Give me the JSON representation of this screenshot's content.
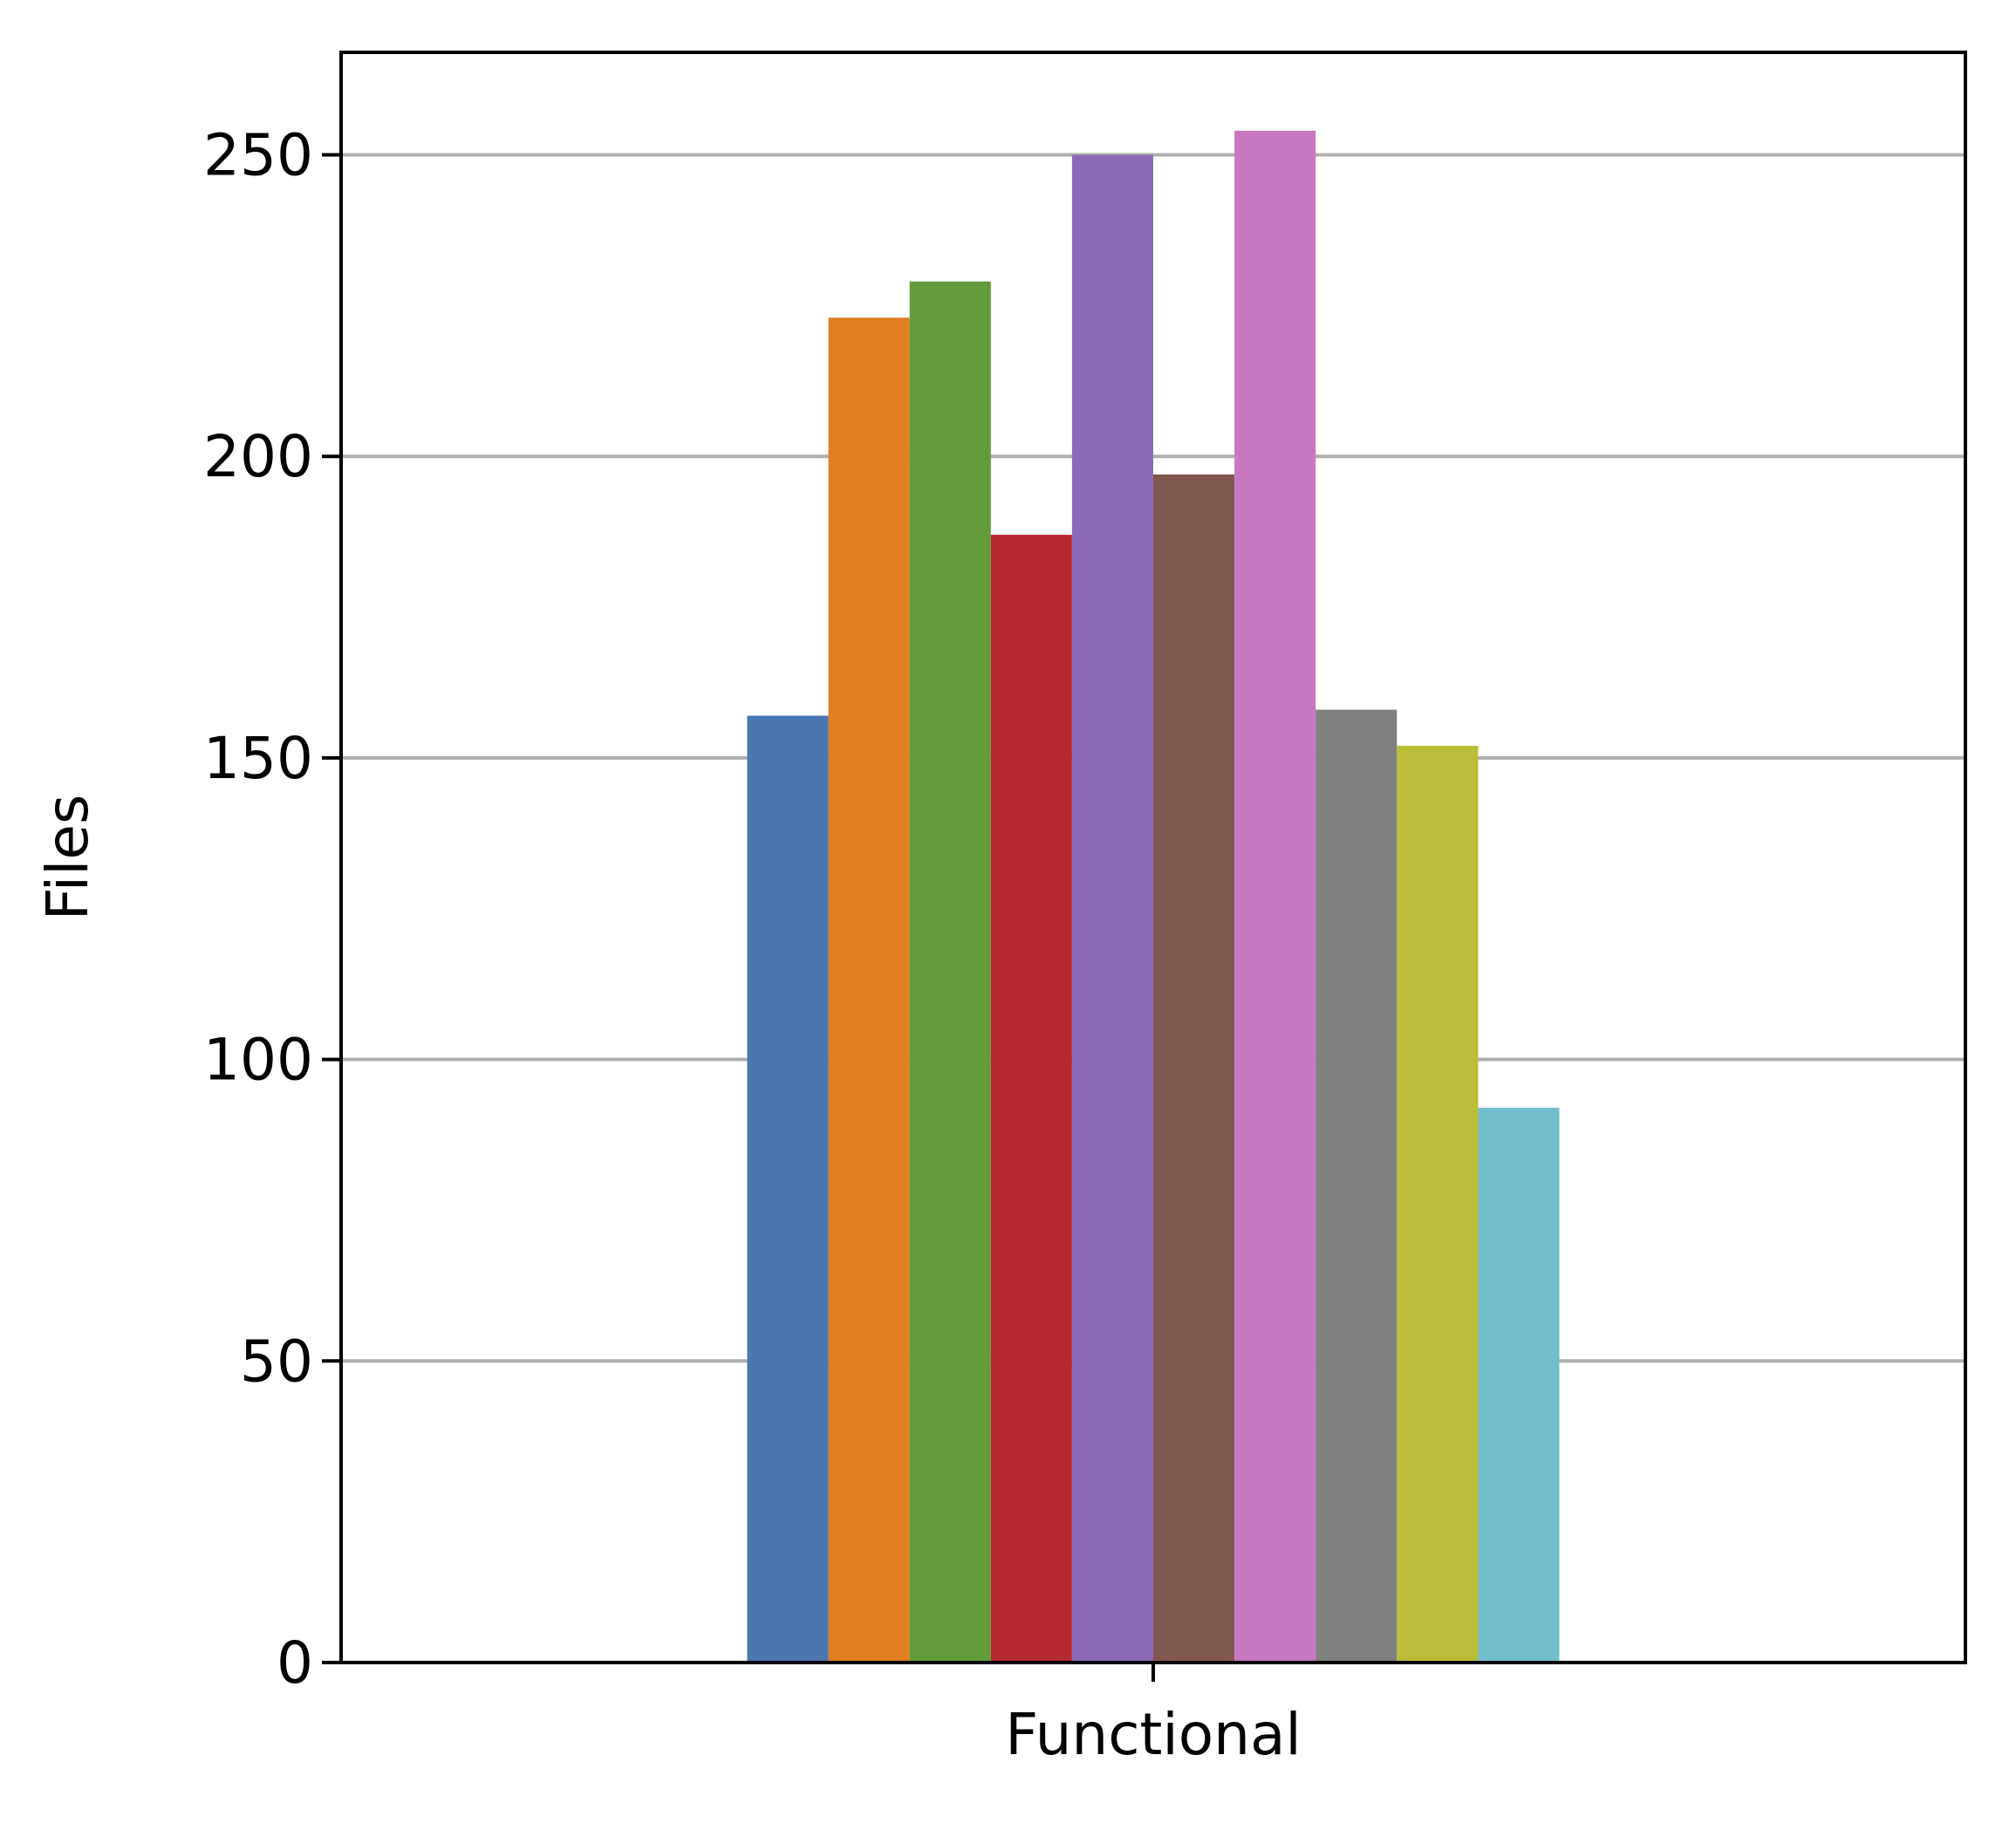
{
  "chart_data": {
    "type": "bar",
    "categories": [
      "Functional"
    ],
    "series": [
      {
        "values": [
          157
        ],
        "color": "#4a77b0"
      },
      {
        "values": [
          223
        ],
        "color": "#e07e24"
      },
      {
        "values": [
          229
        ],
        "color": "#639d3b"
      },
      {
        "values": [
          187
        ],
        "color": "#b52a31"
      },
      {
        "values": [
          250
        ],
        "color": "#8a6ab6"
      },
      {
        "values": [
          197
        ],
        "color": "#80574e"
      },
      {
        "values": [
          254
        ],
        "color": "#c878be"
      },
      {
        "values": [
          158
        ],
        "color": "#7f7f7f"
      },
      {
        "values": [
          152
        ],
        "color": "#bcbd38"
      },
      {
        "values": [
          92
        ],
        "color": "#71bdcc"
      }
    ],
    "xlabel": "",
    "ylabel": "Files",
    "ylim": [
      0,
      267
    ],
    "yticks": [
      0,
      50,
      100,
      150,
      200,
      250
    ],
    "grid": "y",
    "legend": "none",
    "colors": {
      "grid": "#b0b0b0",
      "axes": "#000000",
      "background": "#ffffff"
    }
  }
}
